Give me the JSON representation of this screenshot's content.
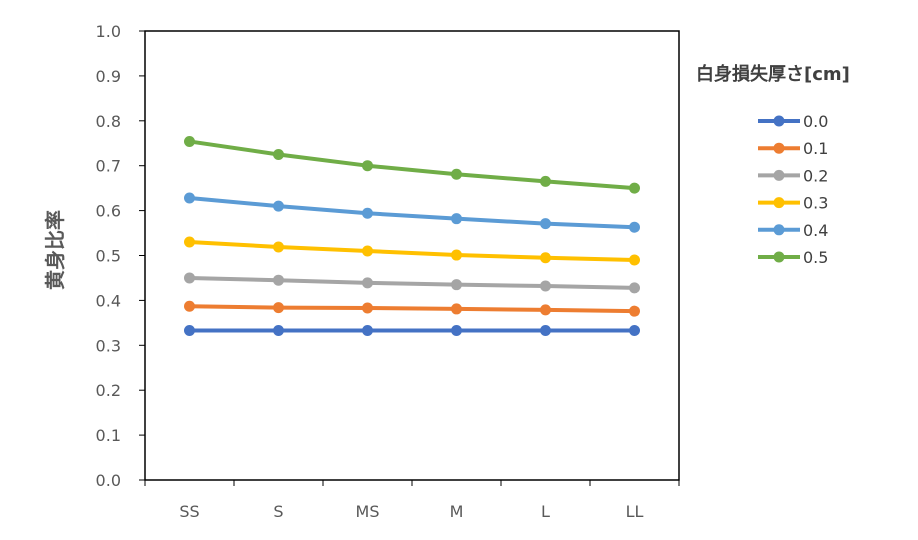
{
  "chart_data": {
    "type": "line",
    "categories": [
      "SS",
      "S",
      "MS",
      "M",
      "L",
      "LL"
    ],
    "ylabel": "黄身比率",
    "xlabel": "",
    "ylim": [
      0.0,
      1.0
    ],
    "ytick_step": 0.1,
    "grid": false,
    "legend": {
      "title": "白身損失厚さ[cm]",
      "placement": "right"
    },
    "series": [
      {
        "name": "0.0",
        "color": "#4472C4",
        "values": [
          0.333,
          0.333,
          0.333,
          0.333,
          0.333,
          0.333
        ]
      },
      {
        "name": "0.1",
        "color": "#ED7D31",
        "values": [
          0.387,
          0.384,
          0.383,
          0.381,
          0.379,
          0.376
        ]
      },
      {
        "name": "0.2",
        "color": "#A5A5A5",
        "values": [
          0.45,
          0.445,
          0.439,
          0.435,
          0.432,
          0.428
        ]
      },
      {
        "name": "0.3",
        "color": "#FFC000",
        "values": [
          0.53,
          0.519,
          0.51,
          0.501,
          0.495,
          0.49
        ]
      },
      {
        "name": "0.4",
        "color": "#5B9BD5",
        "values": [
          0.628,
          0.61,
          0.594,
          0.582,
          0.571,
          0.563
        ]
      },
      {
        "name": "0.5",
        "color": "#70AD47",
        "values": [
          0.754,
          0.725,
          0.7,
          0.681,
          0.665,
          0.65
        ]
      }
    ]
  }
}
